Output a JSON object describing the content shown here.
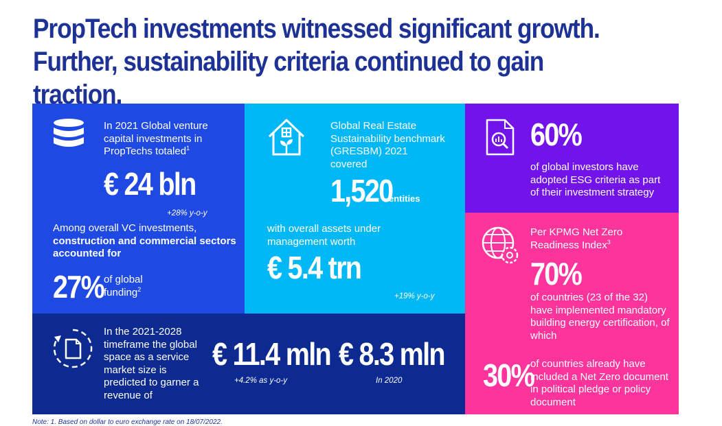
{
  "title": {
    "line1": "PropTech investments witnessed significant growth.",
    "line2": "Further, sustainability criteria continued to gain traction."
  },
  "vc_panel": {
    "icon": "database-icon",
    "intro": "In 2021 Global venture capital investments in PropTechs totaled",
    "intro_sup": "1",
    "amount": "€ 24 bln",
    "growth": "+28% y-o-y",
    "share_intro": "Among overall VC investments,",
    "share_bold": "construction and commercial sectors accounted for",
    "share_value": "27%",
    "share_label": "of global funding",
    "share_sup": "2"
  },
  "gresb_panel": {
    "icon": "house-plant-icon",
    "intro": "Global Real Estate Sustainability benchmark (GRESBM) 2021 covered",
    "entities_value": "1,520",
    "entities_label": "entities",
    "assets_intro": "with overall assets under management worth",
    "assets_value": "€ 5.4 trn",
    "growth": "+19% y-o-y"
  },
  "market_panel": {
    "icon": "document-cycle-icon",
    "intro": "In the 2021-2028 timeframe the global space as a service market size is predicted to garner a revenue of",
    "value1": "€ 11.4 mln",
    "value1_note": "+4.2% as y-o-y",
    "value2": "€ 8.3 mln",
    "value2_note": "In 2020"
  },
  "esg_panel": {
    "icon": "document-search-icon",
    "value": "60%",
    "text": "of global investors have adopted ESG criteria as part of their investment strategy"
  },
  "netzero_panel": {
    "icon": "globe-gear-icon",
    "intro": "Per KPMG Net Zero Readiness Index",
    "intro_sup": "3",
    "value1": "70%",
    "text1": "of countries (23 of the 32) have implemented mandatory building energy certification, of which",
    "value2": "30%",
    "text2": "of countries already have included a Net Zero document in political pledge or policy document"
  },
  "footnote": "Note: 1. Based on dollar to euro exchange rate on 18/07/2022.",
  "colors": {
    "title": "#1e3296",
    "blue": "#1e49e2",
    "cyan": "#00b8f5",
    "navy": "#0c2a8f",
    "purple": "#7213ea",
    "pink": "#fd349c"
  }
}
